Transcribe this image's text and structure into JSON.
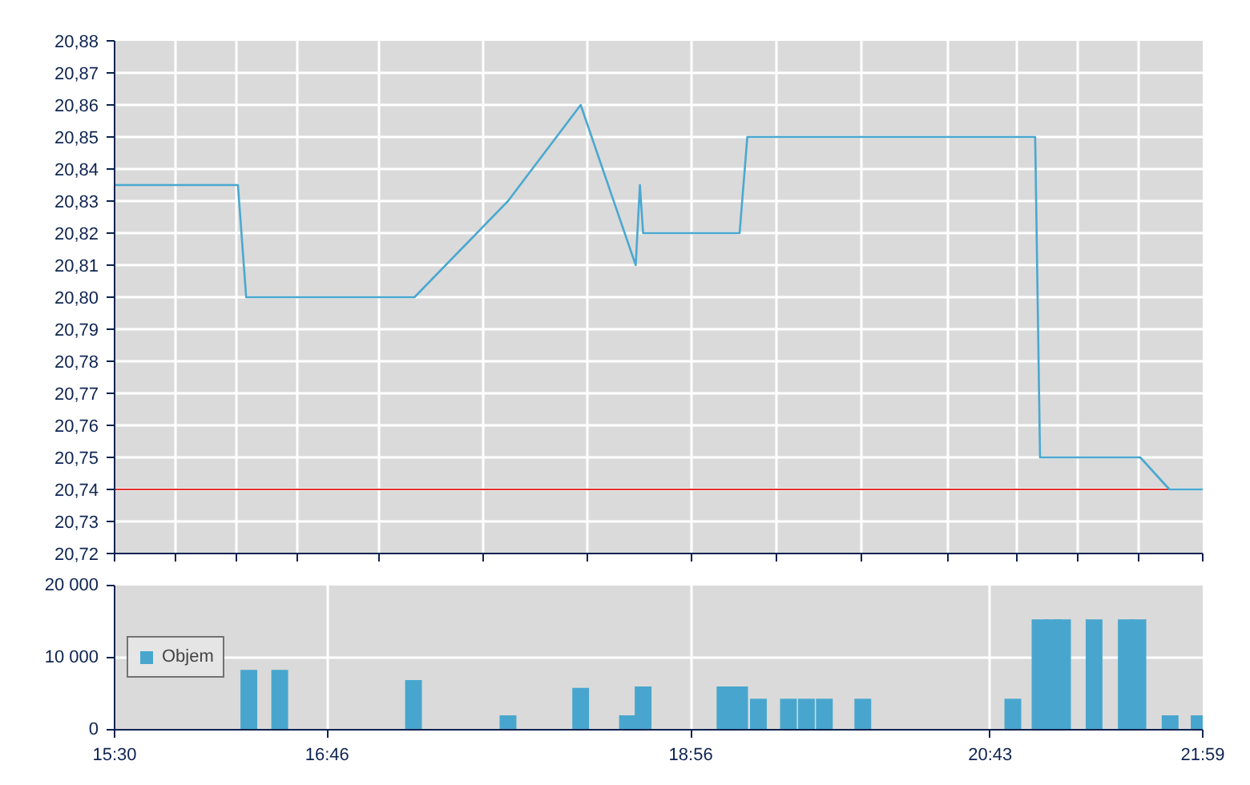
{
  "chart_data": [
    {
      "type": "line",
      "color": "#4aa8d0",
      "line_style": "solid",
      "marker": "none",
      "x": [
        15.5,
        16.235,
        16.284,
        17.287,
        17.844,
        18.277,
        18.605,
        18.63,
        18.649,
        19.224,
        19.27,
        20.985,
        21.014,
        21.611,
        21.785,
        21.9833
      ],
      "values": [
        20.835,
        20.835,
        20.8,
        20.8,
        20.83,
        20.86,
        20.81,
        20.835,
        20.82,
        20.82,
        20.85,
        20.85,
        20.75,
        20.75,
        20.74,
        20.74
      ],
      "xlim": [
        15.5,
        21.9833
      ],
      "xticks": [
        {
          "value": 15.5,
          "label": null
        },
        {
          "value": 15.862,
          "label": null
        },
        {
          "value": 16.224,
          "label": null
        },
        {
          "value": 16.586,
          "label": null
        },
        {
          "value": 17.076,
          "label": null
        },
        {
          "value": 17.695,
          "label": null
        },
        {
          "value": 18.314,
          "label": null
        },
        {
          "value": 18.933,
          "label": null
        },
        {
          "value": 19.443,
          "label": null
        },
        {
          "value": 19.952,
          "label": null
        },
        {
          "value": 20.462,
          "label": null
        },
        {
          "value": 20.879,
          "label": null
        },
        {
          "value": 21.241,
          "label": null
        },
        {
          "value": 21.603,
          "label": null
        },
        {
          "value": 21.9833,
          "label": null
        }
      ],
      "ylim": [
        20.72,
        20.88
      ],
      "yticks": [
        {
          "value": 20.72,
          "label": "20,72"
        },
        {
          "value": 20.73,
          "label": "20,73"
        },
        {
          "value": 20.74,
          "label": "20,74"
        },
        {
          "value": 20.75,
          "label": "20,75"
        },
        {
          "value": 20.76,
          "label": "20,76"
        },
        {
          "value": 20.77,
          "label": "20,77"
        },
        {
          "value": 20.78,
          "label": "20,78"
        },
        {
          "value": 20.79,
          "label": "20,79"
        },
        {
          "value": 20.8,
          "label": "20,80"
        },
        {
          "value": 20.81,
          "label": "20,81"
        },
        {
          "value": 20.82,
          "label": "20,82"
        },
        {
          "value": 20.83,
          "label": "20,83"
        },
        {
          "value": 20.84,
          "label": "20,84"
        },
        {
          "value": 20.85,
          "label": "20,85"
        },
        {
          "value": 20.86,
          "label": "20,86"
        },
        {
          "value": 20.87,
          "label": "20,87"
        },
        {
          "value": 20.88,
          "label": "20,88"
        }
      ],
      "ref_lines": [
        {
          "axis": "y",
          "value": 20.74,
          "label": null,
          "color": "#e03030"
        }
      ],
      "tick_labels": "y",
      "grid": true,
      "legend": false
    },
    {
      "type": "bar",
      "x": [
        16.3,
        16.484,
        17.281,
        17.844,
        18.277,
        18.556,
        18.649,
        19.137,
        19.224,
        19.336,
        19.515,
        19.622,
        19.729,
        19.958,
        20.852,
        21.014,
        21.09,
        21.148,
        21.336,
        21.528,
        21.597,
        21.789,
        21.962
      ],
      "series": [
        {
          "name": "Objem",
          "color": "#48a6ce",
          "values": [
            8300,
            8300,
            6900,
            2000,
            5800,
            2000,
            6000,
            6000,
            6000,
            4300,
            4300,
            4300,
            4300,
            4300,
            4300,
            15300,
            15300,
            15300,
            15300,
            15300,
            15300,
            2000,
            2000
          ]
        }
      ],
      "xlim": [
        15.5,
        21.9833
      ],
      "xticks": [
        {
          "value": 15.5,
          "label": "15:30"
        },
        {
          "value": 16.7667,
          "label": "16:46"
        },
        {
          "value": 18.9333,
          "label": "18:56"
        },
        {
          "value": 20.7167,
          "label": "20:43"
        },
        {
          "value": 21.9833,
          "label": "21:59"
        }
      ],
      "ylim": [
        0,
        20000
      ],
      "yticks": [
        {
          "value": 0,
          "label": "0"
        },
        {
          "value": 10000,
          "label": "10 000"
        },
        {
          "value": 20000,
          "label": "20 000"
        }
      ],
      "grid": true,
      "legend": "left"
    }
  ]
}
